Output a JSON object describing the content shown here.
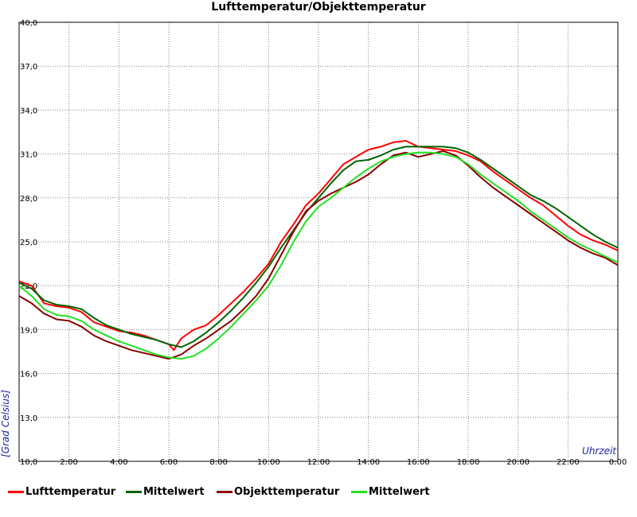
{
  "chart_data": {
    "type": "line",
    "title": "Lufttemperatur/Objekttemperatur",
    "xlabel": "Uhrzeit",
    "ylabel": "[Grad Celsius]",
    "ylim": [
      10.0,
      40.0
    ],
    "xlim": [
      0,
      24
    ],
    "grid": true,
    "legend_position": "bottom",
    "y_ticks": [
      "10,0",
      "13,0",
      "16,0",
      "19,0",
      "22,0",
      "25,0",
      "28,0",
      "31,0",
      "34,0",
      "37,0",
      "40,0"
    ],
    "x_ticks": [
      "2:00",
      "4:00",
      "6:00",
      "8:00",
      "10:00",
      "12:00",
      "14:00",
      "16:00",
      "18:00",
      "20:00",
      "22:00",
      "0:00"
    ],
    "series": [
      {
        "name": "Lufttemperatur",
        "color": "#ff0000",
        "x": [
          0,
          0.5,
          1,
          1.5,
          2,
          2.5,
          3,
          3.5,
          4,
          4.5,
          5,
          5.5,
          6,
          6.2,
          6.5,
          7,
          7.5,
          8,
          8.5,
          9,
          9.5,
          10,
          10.5,
          11,
          11.5,
          12,
          12.5,
          13,
          13.5,
          14,
          14.5,
          15,
          15.5,
          16,
          16.5,
          17,
          17.5,
          18,
          18.5,
          19,
          19.5,
          20,
          20.5,
          21,
          21.5,
          22,
          22.5,
          23,
          23.5,
          24
        ],
        "y": [
          22.3,
          22.0,
          20.8,
          20.6,
          20.5,
          20.2,
          19.5,
          19.2,
          18.9,
          18.8,
          18.6,
          18.3,
          18.0,
          17.6,
          18.4,
          19.0,
          19.3,
          20.0,
          20.8,
          21.6,
          22.5,
          23.5,
          25.0,
          26.2,
          27.5,
          28.3,
          29.3,
          30.3,
          30.8,
          31.3,
          31.5,
          31.8,
          31.9,
          31.5,
          31.4,
          31.3,
          31.2,
          30.9,
          30.5,
          29.8,
          29.2,
          28.6,
          28.0,
          27.5,
          26.8,
          26.1,
          25.5,
          25.1,
          24.8,
          24.4
        ]
      },
      {
        "name": "Mittelwert",
        "color": "#006400",
        "x": [
          0,
          0.5,
          1,
          1.5,
          2,
          2.5,
          3,
          3.5,
          4,
          4.5,
          5,
          5.5,
          6,
          6.5,
          7,
          7.5,
          8,
          8.5,
          9,
          9.5,
          10,
          10.5,
          11,
          11.5,
          12,
          12.5,
          13,
          13.5,
          14,
          14.5,
          15,
          15.5,
          16,
          16.5,
          17,
          17.5,
          18,
          18.5,
          19,
          19.5,
          20,
          20.5,
          21,
          21.5,
          22,
          22.5,
          23,
          23.5,
          24
        ],
        "y": [
          22.2,
          21.8,
          21.0,
          20.7,
          20.6,
          20.4,
          19.8,
          19.3,
          19.0,
          18.7,
          18.5,
          18.3,
          18.0,
          17.8,
          18.2,
          18.8,
          19.5,
          20.3,
          21.2,
          22.2,
          23.3,
          24.6,
          25.8,
          27.0,
          28.0,
          29.0,
          29.9,
          30.5,
          30.6,
          30.9,
          31.3,
          31.5,
          31.5,
          31.5,
          31.5,
          31.4,
          31.1,
          30.6,
          30.0,
          29.4,
          28.8,
          28.2,
          27.8,
          27.3,
          26.7,
          26.1,
          25.5,
          25.0,
          24.6
        ]
      },
      {
        "name": "Objekttemperatur",
        "color": "#8b0000",
        "x": [
          0,
          0.5,
          1,
          1.5,
          2,
          2.5,
          3,
          3.5,
          4,
          4.5,
          5,
          5.5,
          6,
          6.5,
          7,
          7.5,
          8,
          8.5,
          9,
          9.5,
          10,
          10.5,
          11,
          11.5,
          12,
          12.5,
          13,
          13.5,
          14,
          14.5,
          15,
          15.5,
          16,
          16.5,
          17,
          17.5,
          18,
          18.5,
          19,
          19.5,
          20,
          20.5,
          21,
          21.5,
          22,
          22.5,
          23,
          23.5,
          24
        ],
        "y": [
          21.3,
          20.8,
          20.1,
          19.7,
          19.6,
          19.2,
          18.6,
          18.2,
          17.9,
          17.6,
          17.4,
          17.2,
          17.0,
          17.3,
          17.9,
          18.4,
          19.0,
          19.6,
          20.4,
          21.3,
          22.5,
          24.1,
          25.7,
          27.1,
          27.8,
          28.3,
          28.7,
          29.1,
          29.6,
          30.3,
          30.9,
          31.1,
          30.8,
          31.0,
          31.2,
          30.9,
          30.2,
          29.4,
          28.7,
          28.1,
          27.5,
          26.9,
          26.3,
          25.7,
          25.1,
          24.6,
          24.2,
          23.9,
          23.4
        ]
      },
      {
        "name": "Mittelwert",
        "color": "#22e022",
        "x": [
          0,
          0.5,
          1,
          1.5,
          2,
          2.5,
          3,
          3.5,
          4,
          4.5,
          5,
          5.5,
          6,
          6.5,
          7,
          7.5,
          8,
          8.5,
          9,
          9.5,
          10,
          10.5,
          11,
          11.5,
          12,
          12.5,
          13,
          13.5,
          14,
          14.5,
          15,
          15.5,
          16,
          16.5,
          17,
          17.5,
          18,
          18.5,
          19,
          19.5,
          20,
          20.5,
          21,
          21.5,
          22,
          22.5,
          23,
          23.5,
          24
        ],
        "y": [
          22.0,
          21.3,
          20.4,
          20.0,
          19.9,
          19.6,
          19.0,
          18.6,
          18.2,
          17.9,
          17.6,
          17.3,
          17.1,
          17.0,
          17.2,
          17.7,
          18.4,
          19.2,
          20.1,
          21.0,
          22.0,
          23.4,
          25.0,
          26.4,
          27.4,
          28.0,
          28.7,
          29.4,
          30.0,
          30.5,
          30.8,
          31.0,
          31.1,
          31.1,
          31.0,
          30.8,
          30.3,
          29.6,
          29.0,
          28.4,
          27.8,
          27.1,
          26.5,
          25.9,
          25.3,
          24.8,
          24.4,
          24.0,
          23.6
        ]
      }
    ]
  }
}
